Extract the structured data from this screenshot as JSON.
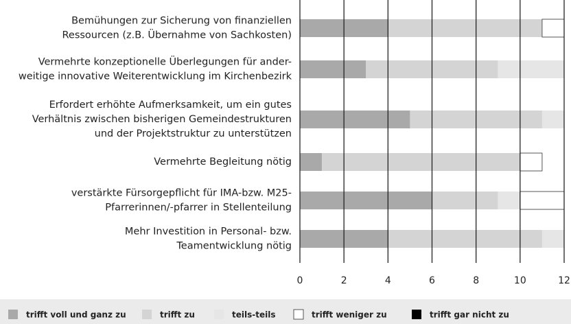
{
  "chart_data": {
    "type": "bar",
    "orientation": "horizontal",
    "stacked": true,
    "categories": [
      [
        "Bemühungen zur Sicherung von finanziellen",
        "Ressourcen (z.B. Übernahme von Sachkosten)"
      ],
      [
        "Vermehrte konzeptionelle Überlegungen für ander-",
        "weitige innovative Weiterentwicklung im Kirchenbezirk"
      ],
      [
        "Erfordert erhöhte Aufmerksamkeit, um ein gutes",
        "Verhältnis zwischen bisherigen Gemeindestrukturen",
        "und der Projektstruktur zu unterstützen"
      ],
      [
        "Vermehrte Begleitung nötig"
      ],
      [
        "verstärkte Fürsorgepflicht für IMA-bzw. M25-",
        "Pfarrerinnen/-pfarrer in Stellenteilung"
      ],
      [
        "Mehr Investition in Personal- bzw.",
        "Teamentwicklung nötig"
      ]
    ],
    "series": [
      {
        "name": "trifft voll und ganz zu",
        "color": "#a9a9a9",
        "values": [
          4,
          3,
          5,
          1,
          6,
          4
        ]
      },
      {
        "name": "trifft zu",
        "color": "#d4d4d4",
        "values": [
          7,
          6,
          6,
          9,
          3,
          7
        ]
      },
      {
        "name": "teils-teils",
        "color": "#e6e6e6",
        "values": [
          0,
          3,
          1,
          0,
          1,
          1
        ]
      },
      {
        "name": "trifft weniger zu",
        "color": "#ffffff",
        "values": [
          1,
          0,
          0,
          1,
          2,
          0
        ]
      },
      {
        "name": "trifft gar nicht zu",
        "color": "#000000",
        "values": [
          0,
          0,
          0,
          0,
          0,
          0
        ]
      }
    ],
    "xlim": [
      0,
      12
    ],
    "xticks": [
      0,
      2,
      4,
      6,
      8,
      10,
      12
    ],
    "grid": true,
    "legend": "bottom"
  }
}
